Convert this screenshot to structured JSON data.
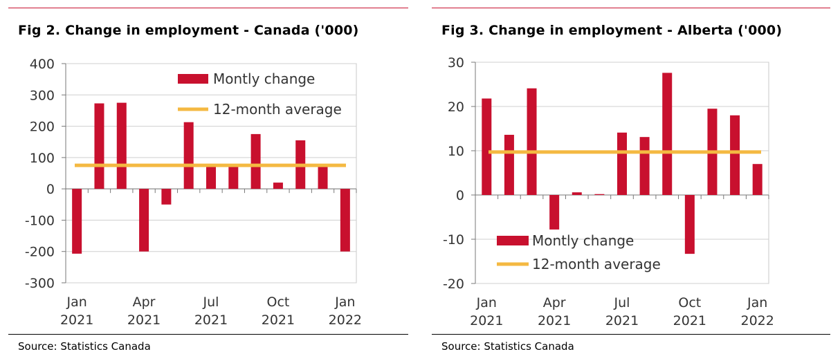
{
  "bar_color": "#c8102e",
  "avg_color": "#f4b942",
  "rule_color": "#c8102e",
  "chart_data": [
    {
      "type": "bar",
      "title": "Fig 2. Change in employment - Canada ('000)",
      "source": "Source: Statistics Canada",
      "categories": [
        "Jan 2021",
        "Feb 2021",
        "Mar 2021",
        "Apr 2021",
        "May 2021",
        "Jun 2021",
        "Jul 2021",
        "Aug 2021",
        "Sep 2021",
        "Oct 2021",
        "Nov 2021",
        "Dec 2021",
        "Jan 2022"
      ],
      "series": [
        {
          "name": "Montly change",
          "type": "bar",
          "values": [
            -207,
            273,
            275,
            -200,
            -50,
            213,
            80,
            70,
            175,
            20,
            155,
            70,
            -200
          ]
        },
        {
          "name": "12-month average",
          "type": "line",
          "values": [
            75,
            75,
            75,
            75,
            75,
            75,
            75,
            75,
            75,
            75,
            75,
            75,
            75
          ]
        }
      ],
      "ylim": [
        -300,
        400
      ],
      "yticks": [
        {
          "value": 400,
          "label": "400"
        },
        {
          "value": 300,
          "label": "300"
        },
        {
          "value": 200,
          "label": "200"
        },
        {
          "value": 100,
          "label": "100"
        },
        {
          "value": 0,
          "label": "0"
        },
        {
          "value": -100,
          "label": "-100"
        },
        {
          "value": -200,
          "label": "-200"
        },
        {
          "value": -300,
          "label": "-300"
        }
      ],
      "xticks": [
        {
          "index": 0,
          "line1": "Jan",
          "line2": "2021"
        },
        {
          "index": 3,
          "line1": "Apr",
          "line2": "2021"
        },
        {
          "index": 6,
          "line1": "Jul",
          "line2": "2021"
        },
        {
          "index": 9,
          "line1": "Oct",
          "line2": "2021"
        },
        {
          "index": 12,
          "line1": "Jan",
          "line2": "2022"
        }
      ],
      "legend_position": "top-right",
      "grid": true
    },
    {
      "type": "bar",
      "title": "Fig 3. Change in employment - Alberta ('000)",
      "source": "Source: Statistics Canada",
      "categories": [
        "Jan 2021",
        "Feb 2021",
        "Mar 2021",
        "Apr 2021",
        "May 2021",
        "Jun 2021",
        "Jul 2021",
        "Aug 2021",
        "Sep 2021",
        "Oct 2021",
        "Nov 2021",
        "Dec 2021",
        "Jan 2022"
      ],
      "series": [
        {
          "name": "Montly change",
          "type": "bar",
          "values": [
            21.8,
            13.6,
            24.1,
            -7.8,
            0.6,
            0.2,
            14.1,
            13.1,
            27.6,
            -13.3,
            19.5,
            18.0,
            7.0
          ]
        },
        {
          "name": "12-month average",
          "type": "line",
          "values": [
            9.7,
            9.7,
            9.7,
            9.7,
            9.7,
            9.7,
            9.7,
            9.7,
            9.7,
            9.7,
            9.7,
            9.7,
            9.7
          ]
        }
      ],
      "ylim": [
        -20,
        30
      ],
      "yticks": [
        {
          "value": 30,
          "label": "30"
        },
        {
          "value": 20,
          "label": "20"
        },
        {
          "value": 10,
          "label": "10"
        },
        {
          "value": 0,
          "label": "0"
        },
        {
          "value": -10,
          "label": "-10"
        },
        {
          "value": -20,
          "label": "-20"
        }
      ],
      "xticks": [
        {
          "index": 0,
          "line1": "Jan",
          "line2": "2021"
        },
        {
          "index": 3,
          "line1": "Apr",
          "line2": "2021"
        },
        {
          "index": 6,
          "line1": "Jul",
          "line2": "2021"
        },
        {
          "index": 9,
          "line1": "Oct",
          "line2": "2021"
        },
        {
          "index": 12,
          "line1": "Jan",
          "line2": "2022"
        }
      ],
      "legend_position": "bottom-left",
      "grid": true
    }
  ]
}
